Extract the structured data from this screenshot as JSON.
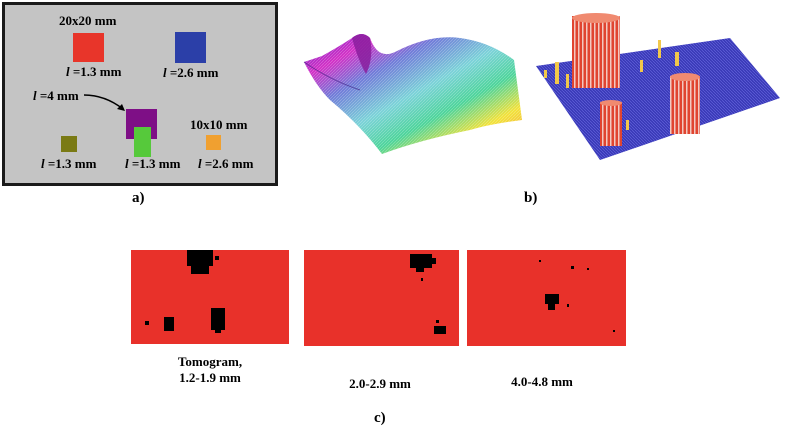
{
  "panel_a": {
    "caption": "a)",
    "size_large": "20x20 mm",
    "size_small": "10x10 mm",
    "label_l": "l",
    "labels": {
      "red": "=1.3 mm",
      "blue": "=2.6 mm",
      "purple": "=4 mm",
      "olive": "=1.3 mm",
      "green": "=1.3 mm",
      "orange": "=2.6 mm"
    },
    "colors": {
      "background": "#c4c4c4",
      "red": "#e8352a",
      "blue": "#2b3fa8",
      "purple": "#7e0f86",
      "olive": "#7a7a14",
      "green": "#56c93b",
      "orange": "#f0a030"
    }
  },
  "panel_b": {
    "caption": "b)"
  },
  "panel_c": {
    "caption": "c)",
    "images": [
      {
        "label_line1": "Tomogram,",
        "label_line2": "1.2-1.9 mm"
      },
      {
        "label_line1": "2.0-2.9 mm",
        "label_line2": ""
      },
      {
        "label_line1": "4.0-4.8 mm",
        "label_line2": ""
      }
    ],
    "colors": {
      "background": "#e8312a",
      "defect": "#000000"
    }
  }
}
